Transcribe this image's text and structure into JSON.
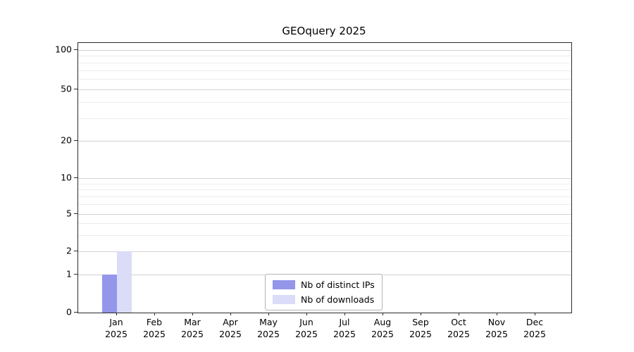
{
  "chart_data": {
    "type": "bar",
    "title": "GEOquery 2025",
    "categories": [
      "Jan",
      "Feb",
      "Mar",
      "Apr",
      "May",
      "Jun",
      "Jul",
      "Aug",
      "Sep",
      "Oct",
      "Nov",
      "Dec"
    ],
    "category_year": "2025",
    "series": [
      {
        "name": "Nb of distinct IPs",
        "color": "#9496ea",
        "values": [
          1,
          0,
          0,
          0,
          0,
          0,
          0,
          0,
          0,
          0,
          0,
          0
        ]
      },
      {
        "name": "Nb of downloads",
        "color": "#dadcf8",
        "values": [
          2,
          0,
          0,
          0,
          0,
          0,
          0,
          0,
          0,
          0,
          0,
          0
        ]
      }
    ],
    "y_ticks": [
      0,
      1,
      2,
      5,
      10,
      20,
      50,
      100
    ],
    "ylim": [
      0,
      110
    ],
    "yscale": "log-with-zero",
    "grid": "horizontal-minor",
    "legend_position": "bottom-center"
  }
}
